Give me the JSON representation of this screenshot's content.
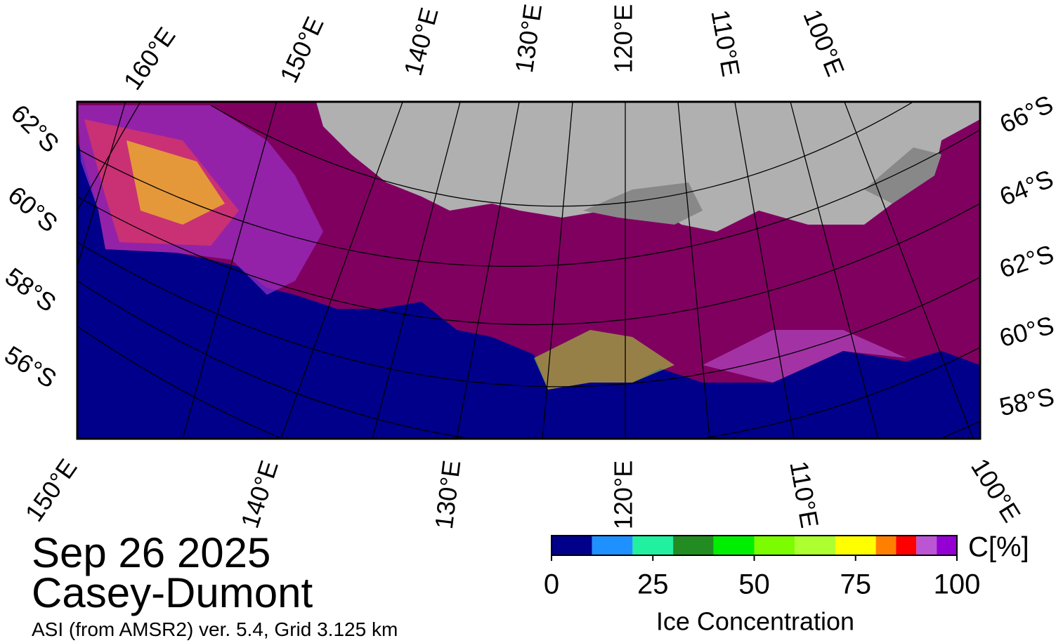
{
  "map": {
    "top_labels": [
      "160°E",
      "150°E",
      "140°E",
      "130°E",
      "120°E",
      "110°E",
      "100°E"
    ],
    "bottom_labels": [
      "150°E",
      "140°E",
      "130°E",
      "120°E",
      "110°E",
      "100°E"
    ],
    "left_labels": [
      "62°S",
      "60°S",
      "58°S",
      "56°S"
    ],
    "right_labels": [
      "66°S",
      "64°S",
      "62°S",
      "60°S",
      "58°S"
    ]
  },
  "date": "Sep 26 2025",
  "region": "Casey-Dumont",
  "source": "ASI (from AMSR2) ver. 5.4,  Grid 3.125 km",
  "colorbar": {
    "label": "Ice Concentration",
    "unit": "C[%]",
    "lim": [
      0,
      100
    ],
    "ticks": [
      0,
      25,
      50,
      75,
      100
    ],
    "bins": [
      0,
      10,
      20,
      30,
      40,
      50,
      60,
      70,
      80,
      85,
      90,
      95,
      100
    ],
    "colors": [
      "#00008b",
      "#1e90ff",
      "#20f0a0",
      "#228b22",
      "#00ee00",
      "#7cfc00",
      "#adff2f",
      "#ffff00",
      "#ff8000",
      "#ff0000",
      "#ba55d3",
      "#9400d3"
    ]
  }
}
